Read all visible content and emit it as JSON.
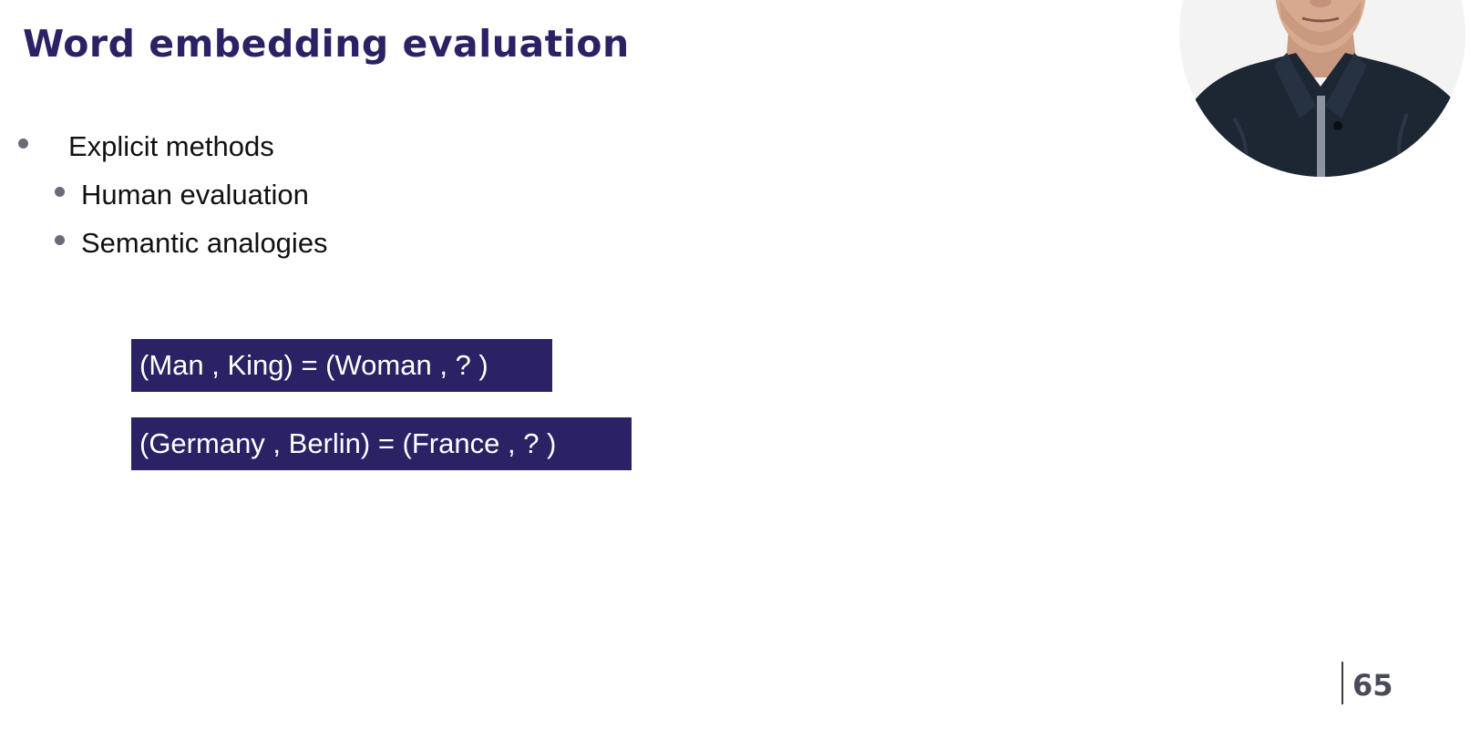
{
  "slide": {
    "title": "Word embedding evaluation",
    "bullets": {
      "level1": "Explicit methods",
      "sub": [
        "Human evaluation",
        "Semantic analogies"
      ]
    },
    "analogies": [
      "(Man , King) = (Woman , ? )",
      "(Germany , Berlin) = (France , ? )"
    ],
    "page_number": "65"
  },
  "colors": {
    "title": "#2b2266",
    "box_background": "#2b2266",
    "box_text": "#ffffff",
    "bullet_dot": "#6b6b78"
  },
  "icons": {
    "presenter": "presenter-webcam-image"
  }
}
